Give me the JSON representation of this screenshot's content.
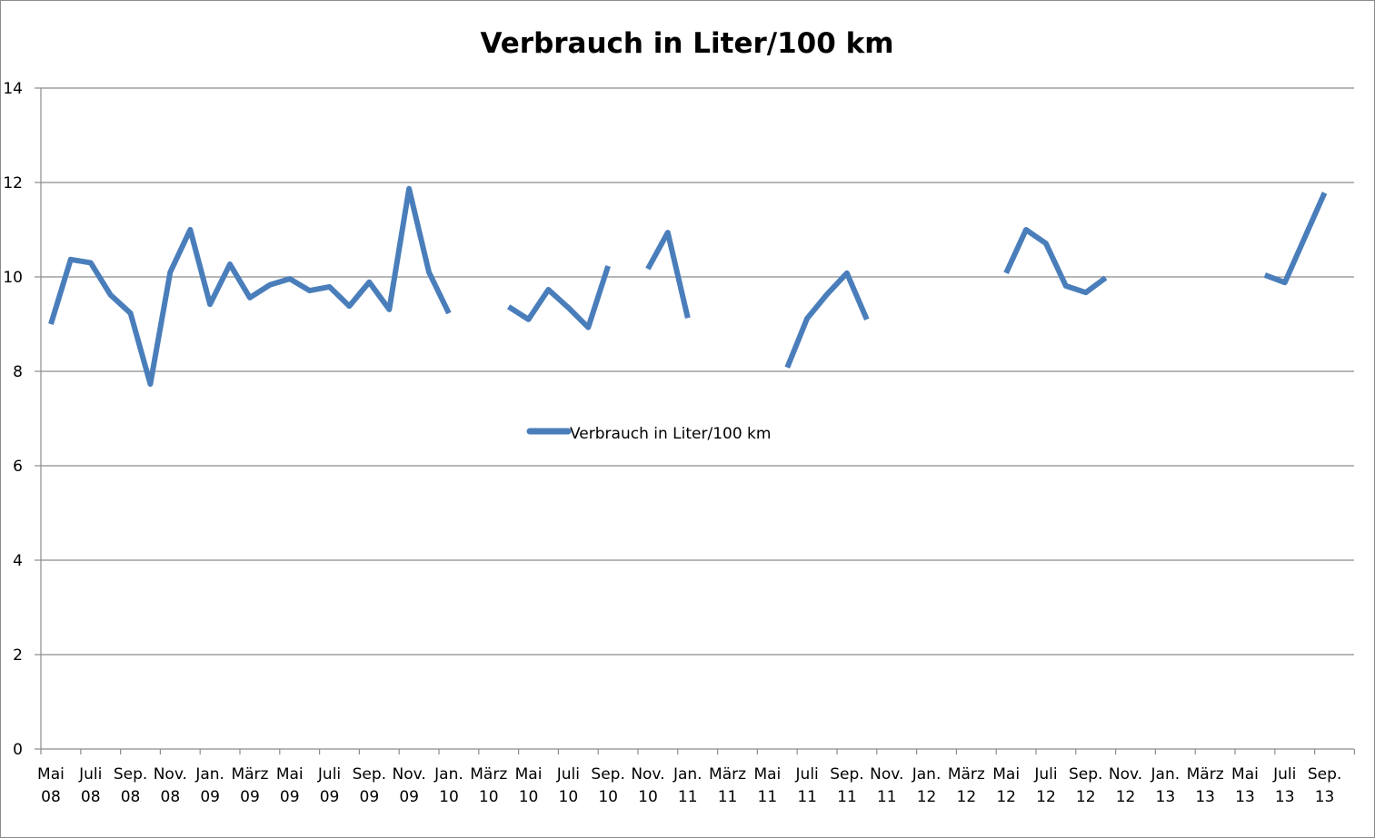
{
  "chart_data": {
    "type": "line",
    "title": "Verbrauch in Liter/100 km",
    "xlabel": "",
    "ylabel": "",
    "ylim": [
      0,
      14
    ],
    "yticks": [
      "0",
      "2",
      "4",
      "6",
      "8",
      "10",
      "12",
      "14"
    ],
    "grid": true,
    "legend_position": "center",
    "series_color": "#4a7ebb",
    "x_labels": [
      {
        "top": "Mai",
        "bottom": "08"
      },
      {
        "top": "Juli",
        "bottom": "08"
      },
      {
        "top": "Sep.",
        "bottom": "08"
      },
      {
        "top": "Nov.",
        "bottom": "08"
      },
      {
        "top": "Jan.",
        "bottom": "09"
      },
      {
        "top": "März",
        "bottom": "09"
      },
      {
        "top": "Mai",
        "bottom": "09"
      },
      {
        "top": "Juli",
        "bottom": "09"
      },
      {
        "top": "Sep.",
        "bottom": "09"
      },
      {
        "top": "Nov.",
        "bottom": "09"
      },
      {
        "top": "Jan.",
        "bottom": "10"
      },
      {
        "top": "März",
        "bottom": "10"
      },
      {
        "top": "Mai",
        "bottom": "10"
      },
      {
        "top": "Juli",
        "bottom": "10"
      },
      {
        "top": "Sep.",
        "bottom": "10"
      },
      {
        "top": "Nov.",
        "bottom": "10"
      },
      {
        "top": "Jan.",
        "bottom": "11"
      },
      {
        "top": "März",
        "bottom": "11"
      },
      {
        "top": "Mai",
        "bottom": "11"
      },
      {
        "top": "Juli",
        "bottom": "11"
      },
      {
        "top": "Sep.",
        "bottom": "11"
      },
      {
        "top": "Nov.",
        "bottom": "11"
      },
      {
        "top": "Jan.",
        "bottom": "12"
      },
      {
        "top": "März",
        "bottom": "12"
      },
      {
        "top": "Mai",
        "bottom": "12"
      },
      {
        "top": "Juli",
        "bottom": "12"
      },
      {
        "top": "Sep.",
        "bottom": "12"
      },
      {
        "top": "Nov.",
        "bottom": "12"
      },
      {
        "top": "Jan.",
        "bottom": "13"
      },
      {
        "top": "März",
        "bottom": "13"
      },
      {
        "top": "Mai",
        "bottom": "13"
      },
      {
        "top": "Juli",
        "bottom": "13"
      },
      {
        "top": "Sep.",
        "bottom": "13"
      }
    ],
    "series": [
      {
        "name": "Verbrauch in Liter/100 km",
        "segments": [
          [
            {
              "x": "Mai 08",
              "y": 9.0
            },
            {
              "x": "Jun. 08",
              "y": 10.37
            },
            {
              "x": "Juli 08",
              "y": 10.3
            },
            {
              "x": "Aug. 08",
              "y": 9.62
            },
            {
              "x": "Sep. 08",
              "y": 9.23
            },
            {
              "x": "Okt. 08",
              "y": 7.73
            },
            {
              "x": "Nov. 08",
              "y": 10.1
            },
            {
              "x": "Dez. 08",
              "y": 11.0
            },
            {
              "x": "Jan. 09",
              "y": 9.42
            },
            {
              "x": "Feb. 09",
              "y": 10.27
            },
            {
              "x": "März 09",
              "y": 9.56
            },
            {
              "x": "Apr. 09",
              "y": 9.83
            },
            {
              "x": "Mai 09",
              "y": 9.96
            },
            {
              "x": "Juni 09",
              "y": 9.71
            },
            {
              "x": "Juli 09",
              "y": 9.79
            },
            {
              "x": "Aug. 09",
              "y": 9.38
            },
            {
              "x": "Sep. 09",
              "y": 9.89
            },
            {
              "x": "Okt. 09",
              "y": 9.31
            },
            {
              "x": "Nov. 09",
              "y": 11.87
            },
            {
              "x": "Dez. 09",
              "y": 10.1
            },
            {
              "x": "Jan. 10",
              "y": 9.23
            }
          ],
          [
            {
              "x": "Apr. 10",
              "y": 9.37
            },
            {
              "x": "Mai 10",
              "y": 9.1
            },
            {
              "x": "Juni 10",
              "y": 9.73
            },
            {
              "x": "Juli 10",
              "y": 9.35
            },
            {
              "x": "Aug. 10",
              "y": 8.93
            },
            {
              "x": "Sep. 10",
              "y": 10.23
            }
          ],
          [
            {
              "x": "Nov. 10",
              "y": 10.17
            },
            {
              "x": "Dez. 10",
              "y": 10.94
            },
            {
              "x": "Jan. 11",
              "y": 9.13
            }
          ],
          [
            {
              "x": "Juni 11",
              "y": 8.08
            },
            {
              "x": "Juli 11",
              "y": 9.12
            },
            {
              "x": "Aug. 11",
              "y": 9.63
            },
            {
              "x": "Sep. 11",
              "y": 10.08
            },
            {
              "x": "Okt. 11",
              "y": 9.1
            }
          ],
          [
            {
              "x": "Mai 12",
              "y": 10.08
            },
            {
              "x": "Juni 12",
              "y": 11.0
            },
            {
              "x": "Juli 12",
              "y": 10.71
            },
            {
              "x": "Aug. 12",
              "y": 9.81
            },
            {
              "x": "Sep. 12",
              "y": 9.67
            },
            {
              "x": "Okt. 12",
              "y": 9.98
            }
          ],
          [
            {
              "x": "Juni 13",
              "y": 10.04
            },
            {
              "x": "Juli 13",
              "y": 9.88
            },
            {
              "x": "Aug. 13",
              "y": 10.83
            },
            {
              "x": "Sep. 13",
              "y": 11.78
            }
          ]
        ]
      }
    ]
  }
}
